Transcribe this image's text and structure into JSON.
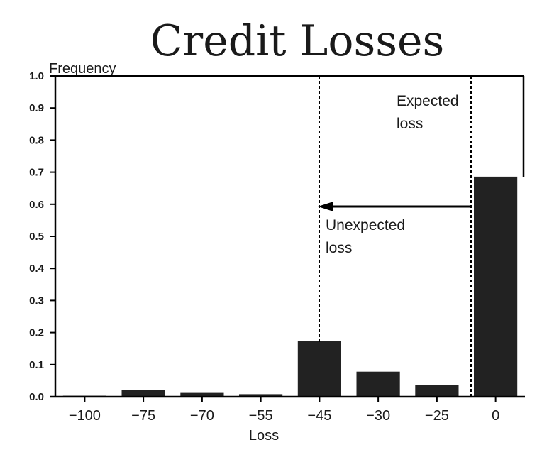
{
  "chart_data": {
    "type": "bar",
    "title": "Credit Losses",
    "xlabel": "Loss",
    "ylabel": "Frequency",
    "categories": [
      "−100",
      "−75",
      "−70",
      "−55",
      "−45",
      "−30",
      "−25",
      "0"
    ],
    "values": [
      0.003,
      0.022,
      0.012,
      0.008,
      0.173,
      0.078,
      0.037,
      0.686
    ],
    "ylim": [
      0,
      1.0
    ],
    "yticks": [
      "0.0",
      "0.1",
      "0.2",
      "0.3",
      "0.4",
      "0.5",
      "0.6",
      "0.7",
      "0.8",
      "0.9",
      "1.0"
    ],
    "grid": false,
    "bar_color": "#222222",
    "annotations": {
      "expected_loss": {
        "line1": "Expected",
        "line2": "loss"
      },
      "unexpected_loss": {
        "line1": "Unexpected",
        "line2": "loss"
      }
    }
  }
}
